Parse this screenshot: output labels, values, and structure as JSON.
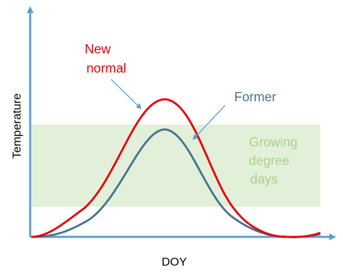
{
  "diagram": {
    "xlabel": "DOY",
    "ylabel": "Temperature",
    "band_label": [
      "Growing",
      "degree",
      "days"
    ],
    "curves": [
      {
        "label": [
          "New",
          "normal"
        ],
        "color": "#e8000b"
      },
      {
        "label": [
          "Former"
        ],
        "color": "#44758f"
      }
    ],
    "colors": {
      "axis": "#5b9bd5",
      "band": "#e2f0d9",
      "band_text": "#a9d18e",
      "arrow": "#5b9bd5"
    }
  }
}
